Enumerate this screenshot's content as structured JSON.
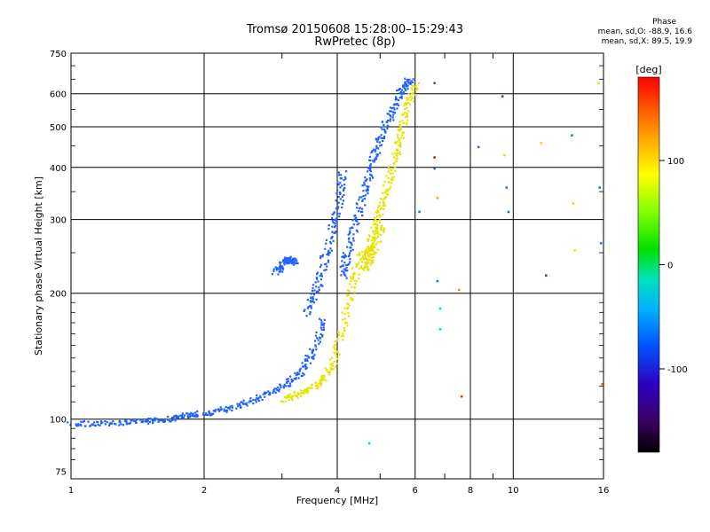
{
  "chart_data": {
    "type": "scatter",
    "title": "Tromsø 20150608 15:28:00–15:29:43",
    "subtitle": "RwPretec (8p)",
    "xlabel": "Frequency [MHz]",
    "ylabel": "Stationary phase Virtual Height [km]",
    "xscale": "log",
    "yscale": "log",
    "xlim": [
      1,
      16
    ],
    "ylim": [
      72,
      750
    ],
    "x_ticks": [
      1,
      2,
      4,
      6,
      8,
      10,
      16
    ],
    "x_minor_ticks": [
      3,
      5,
      7,
      9
    ],
    "y_ticks": [
      75,
      100,
      200,
      300,
      400,
      500,
      600,
      750
    ],
    "grid": true,
    "phase_stats": {
      "heading": "Phase",
      "o_mode": "mean, sd,O: -88.9, 16.6",
      "x_mode": "mean, sd,X:  89.5, 19.9"
    },
    "colorbar": {
      "label": "[deg]",
      "range": [
        -180,
        180
      ],
      "ticks": [
        100,
        0,
        -100
      ]
    },
    "series": [
      {
        "mode": "O",
        "phase_deg": -85,
        "color": "#2060ff",
        "segments": [
          {
            "f": [
              1.0,
              1.2,
              1.4,
              1.6,
              1.8,
              2.0,
              2.3,
              2.6,
              3.0,
              3.3,
              3.5,
              3.7
            ],
            "h": [
              98,
              98,
              99,
              100,
              102,
              104,
              107,
              112,
              120,
              130,
              145,
              175
            ]
          },
          {
            "f": [
              3.4,
              3.6,
              3.8,
              4.0,
              4.1
            ],
            "h": [
              180,
              210,
              260,
              320,
              390
            ]
          },
          {
            "f": [
              4.1,
              4.2,
              4.4,
              4.6,
              4.8,
              5.0,
              5.3,
              5.6,
              5.8
            ],
            "h": [
              220,
              250,
              300,
              360,
              420,
              480,
              550,
              620,
              650
            ]
          },
          {
            "f": [
              2.9,
              3.05,
              3.2
            ],
            "h": [
              225,
              243,
              238
            ]
          }
        ]
      },
      {
        "mode": "X",
        "phase_deg": 90,
        "color": "#e4e400",
        "segments": [
          {
            "f": [
              3.0,
              3.3,
              3.6,
              3.9,
              4.1,
              4.3,
              4.5,
              4.7,
              4.9,
              5.1,
              5.3,
              5.5,
              5.7,
              6.0
            ],
            "h": [
              112,
              116,
              122,
              135,
              165,
              210,
              245,
              260,
              300,
              340,
              400,
              470,
              550,
              640
            ]
          },
          {
            "f": [
              4.6,
              4.8,
              5.0
            ],
            "h": [
              230,
              250,
              290
            ]
          }
        ]
      },
      {
        "mode": "scattered",
        "points": [
          {
            "f": 6.6,
            "h": 640,
            "color": "#7030a0"
          },
          {
            "f": 6.6,
            "h": 425,
            "color": "#e00000"
          },
          {
            "f": 6.6,
            "h": 400,
            "color": "#4040ff"
          },
          {
            "f": 6.7,
            "h": 340,
            "color": "#ffa000"
          },
          {
            "f": 6.7,
            "h": 215,
            "color": "#2060ff"
          },
          {
            "f": 6.8,
            "h": 185,
            "color": "#00d0ff"
          },
          {
            "f": 6.8,
            "h": 165,
            "color": "#00d0ff"
          },
          {
            "f": 7.5,
            "h": 205,
            "color": "#ff8000"
          },
          {
            "f": 7.6,
            "h": 114,
            "color": "#ff2000"
          },
          {
            "f": 8.3,
            "h": 450,
            "color": "#2060ff"
          },
          {
            "f": 9.4,
            "h": 595,
            "color": "#2040d0"
          },
          {
            "f": 9.5,
            "h": 430,
            "color": "#e4e400"
          },
          {
            "f": 9.6,
            "h": 360,
            "color": "#2060ff"
          },
          {
            "f": 9.7,
            "h": 315,
            "color": "#2060ff"
          },
          {
            "f": 11.5,
            "h": 460,
            "color": "#ffd000"
          },
          {
            "f": 11.8,
            "h": 222,
            "color": "#2040d0"
          },
          {
            "f": 13.5,
            "h": 480,
            "color": "#2060ff"
          },
          {
            "f": 13.6,
            "h": 330,
            "color": "#ffd000"
          },
          {
            "f": 13.7,
            "h": 255,
            "color": "#e4e400"
          },
          {
            "f": 15.5,
            "h": 640,
            "color": "#e4e400"
          },
          {
            "f": 15.6,
            "h": 360,
            "color": "#2060ff"
          },
          {
            "f": 15.7,
            "h": 265,
            "color": "#2060ff"
          },
          {
            "f": 15.8,
            "h": 122,
            "color": "#ff8000"
          },
          {
            "f": 6.1,
            "h": 315,
            "color": "#2060ff"
          },
          {
            "f": 4.7,
            "h": 88,
            "color": "#00d0ff"
          }
        ]
      }
    ]
  }
}
